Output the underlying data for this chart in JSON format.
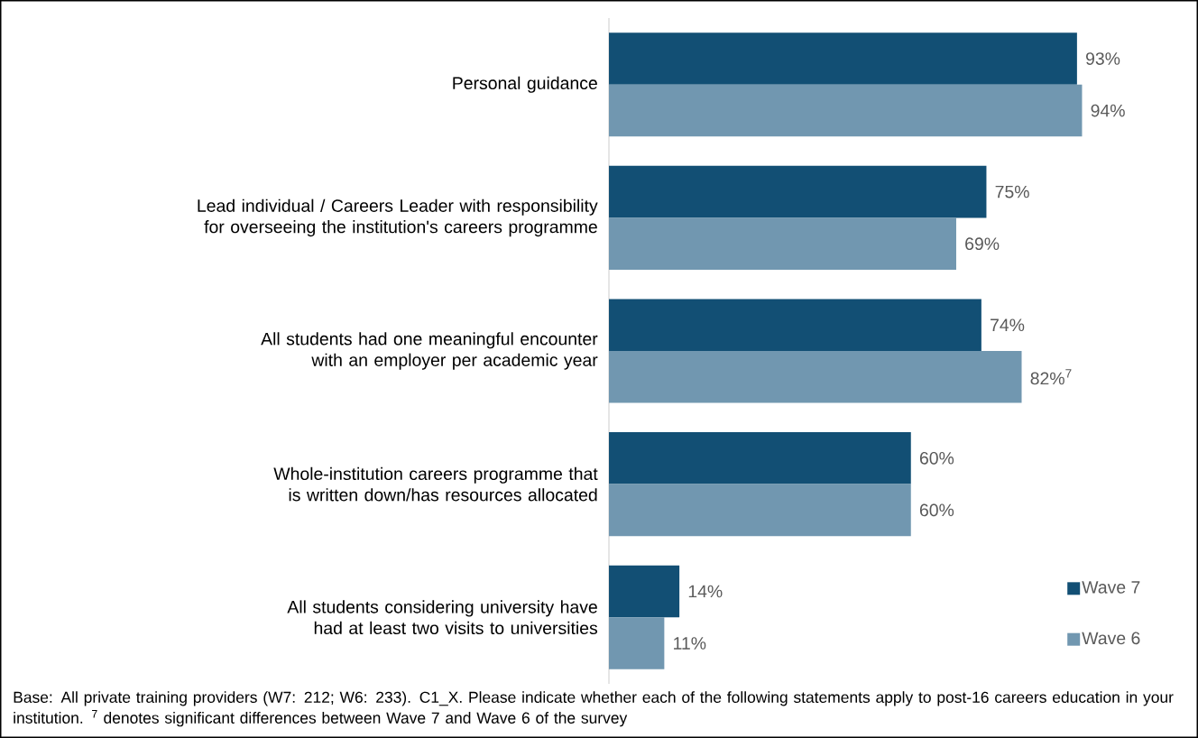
{
  "chart_data": {
    "type": "bar",
    "orientation": "horizontal",
    "categories": [
      "Personal guidance",
      "Lead individual / Careers Leader with responsibility for overseeing the institution's careers programme",
      "All students had one meaningful encounter with an employer per academic year",
      "Whole-institution careers programme that is written down/has resources allocated",
      "All students considering university have had at least two visits to universities"
    ],
    "series": [
      {
        "name": "Wave 7",
        "color": "#124f74",
        "values": [
          93,
          75,
          74,
          60,
          14
        ],
        "value_labels": [
          "93%",
          "75%",
          "74%",
          "60%",
          "14%"
        ]
      },
      {
        "name": "Wave 6",
        "color": "#7197b0",
        "values": [
          94,
          69,
          82,
          60,
          11
        ],
        "value_labels": [
          "94%",
          "69%",
          "82%$^{7}$",
          "60%",
          "11%"
        ]
      }
    ],
    "legend": "bottom right",
    "annotations": [
      "Base: All private training providers (W7: 212; W6: 233). C1_X. Please indicate whether each of the following statements apply to post-16 careers education in your institution. $^{7}$ denotes significant differences between Wave 7 and Wave 6 of the survey"
    ]
  }
}
